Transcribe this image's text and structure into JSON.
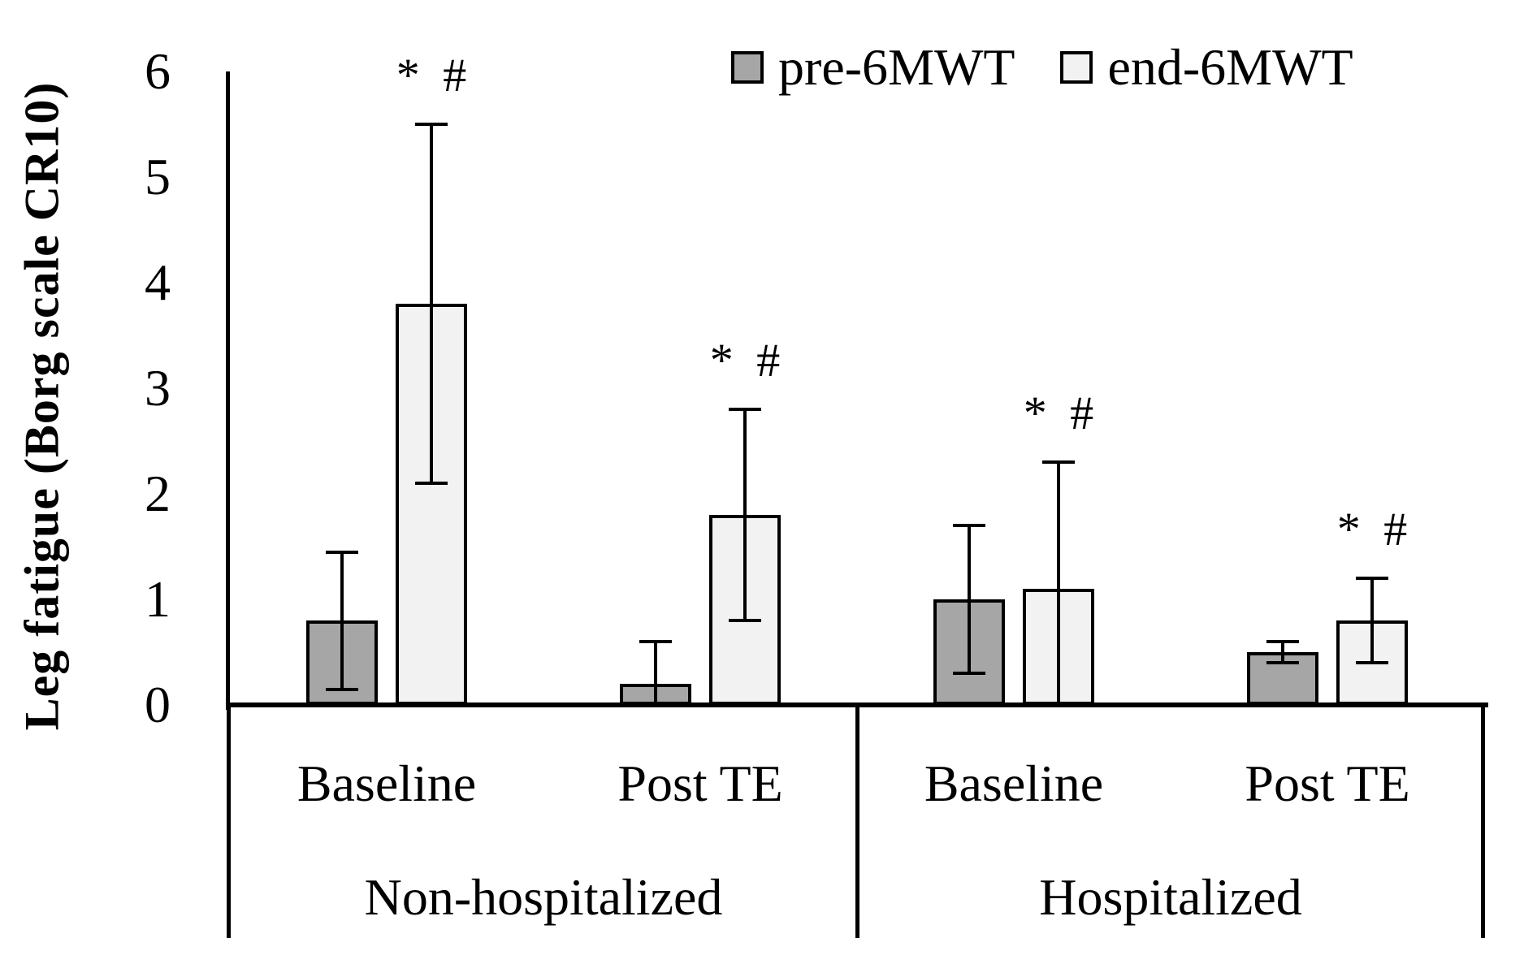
{
  "figure": {
    "y_axis_title": "Leg fatigue (Borg scale CR10)",
    "background": "#ffffff",
    "line_color": "#000000"
  },
  "legend": {
    "items": [
      {
        "label": "pre-6MWT",
        "color": "#a6a6a6"
      },
      {
        "label": "end-6MWT",
        "color": "#f2f2f2"
      }
    ]
  },
  "chart_data": {
    "type": "bar",
    "title": "",
    "xlabel": "",
    "ylabel": "Leg fatigue (Borg scale CR10)",
    "ylim": [
      0,
      6
    ],
    "yticks": [
      0,
      1,
      2,
      3,
      4,
      5,
      6
    ],
    "grid": false,
    "legend_position": "top",
    "group_labels": [
      "Non-hospitalized",
      "Hospitalized"
    ],
    "categories": [
      "Baseline",
      "Post TE",
      "Baseline",
      "Post TE"
    ],
    "series": [
      {
        "name": "pre-6MWT",
        "color": "#a6a6a6",
        "values": [
          0.8,
          0.2,
          1.0,
          0.5
        ],
        "error_high": [
          1.45,
          0.6,
          1.7,
          0.6
        ],
        "error_low": [
          0.15,
          null,
          0.3,
          0.4
        ]
      },
      {
        "name": "end-6MWT",
        "color": "#f2f2f2",
        "values": [
          3.8,
          1.8,
          1.1,
          0.8
        ],
        "error_high": [
          5.5,
          2.8,
          2.3,
          1.2
        ],
        "error_low": [
          2.1,
          0.8,
          null,
          0.4
        ]
      }
    ],
    "annotations": [
      {
        "text": "* #",
        "series": "end-6MWT",
        "groups": [
          0,
          1,
          2,
          3
        ]
      }
    ]
  }
}
